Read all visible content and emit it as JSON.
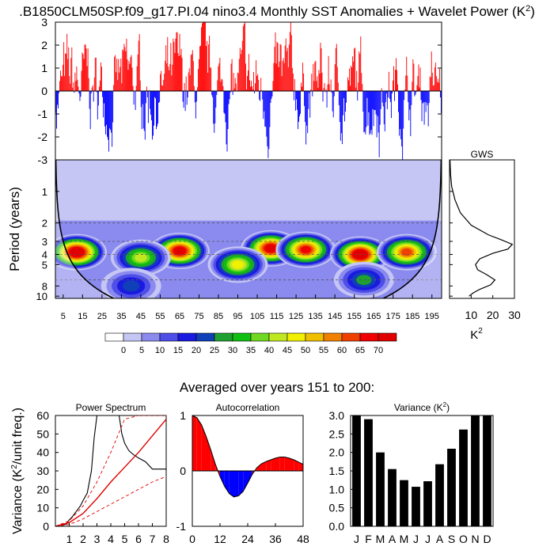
{
  "title": ".B1850CLM50SP.f09_g17.PI.04 nino3.4 Monthly SST Anomalies + Wavelet Power (K",
  "title_sup": "2",
  "title_close": ")",
  "subtitle": "Averaged over years 151 to 200:",
  "colors": {
    "positive": "#ff0000",
    "negative": "#0000ff",
    "cone": "#000000"
  },
  "chart_data": [
    {
      "id": "anomaly",
      "type": "bar",
      "ylim": [
        -3,
        3
      ],
      "yticks": [
        "-3",
        "-2",
        "-1",
        "0",
        "1",
        "2",
        "3"
      ],
      "note": "monthly nino3.4 anomalies, red above zero, blue below zero, years 1-200"
    },
    {
      "id": "wavelet",
      "type": "heatmap",
      "ylabel": "Period (years)",
      "ylog": true,
      "yticks": [
        "1",
        "2",
        "3",
        "4",
        "5",
        "8",
        "10"
      ],
      "xticks": [
        "5",
        "15",
        "25",
        "35",
        "45",
        "55",
        "65",
        "75",
        "85",
        "95",
        "105",
        "115",
        "125",
        "135",
        "145",
        "155",
        "165",
        "175",
        "185",
        "195"
      ],
      "xrange": [
        1,
        200
      ],
      "yrange": [
        0.5,
        10.5
      ],
      "dashed_periods": [
        2,
        3,
        4,
        7
      ],
      "hotspots": [
        {
          "year": 12,
          "period": 3.8,
          "power": 75
        },
        {
          "year": 65,
          "period": 3.7,
          "power": 72
        },
        {
          "year": 112,
          "period": 3.5,
          "power": 70
        },
        {
          "year": 130,
          "period": 3.6,
          "power": 65
        },
        {
          "year": 158,
          "period": 4.0,
          "power": 75
        },
        {
          "year": 182,
          "period": 3.8,
          "power": 60
        },
        {
          "year": 95,
          "period": 5.0,
          "power": 45
        },
        {
          "year": 45,
          "period": 4.3,
          "power": 40
        },
        {
          "year": 40,
          "period": 8,
          "power": 20
        },
        {
          "year": 160,
          "period": 7,
          "power": 25
        }
      ]
    },
    {
      "id": "gws",
      "type": "line",
      "title": "GWS",
      "xlabel": "K",
      "xlabel_sup": "2",
      "xlim": [
        0,
        30
      ],
      "xticks": [
        "10",
        "20",
        "30"
      ],
      "x": [
        0.2,
        0.5,
        1,
        2.5,
        5,
        10,
        18,
        24,
        29,
        27,
        20,
        14,
        12,
        13,
        17,
        21,
        19,
        14,
        11,
        9
      ],
      "y": [
        0.5,
        0.7,
        0.9,
        1.2,
        1.6,
        2.1,
        2.6,
        2.9,
        3.2,
        3.55,
        3.9,
        4.4,
        5.0,
        5.6,
        6.2,
        7.0,
        7.8,
        8.6,
        9.3,
        10.0
      ]
    },
    {
      "id": "colorbar",
      "type": "legend",
      "labels": [
        "0",
        "5",
        "10",
        "15",
        "20",
        "25",
        "30",
        "35",
        "40",
        "45",
        "50",
        "55",
        "60",
        "65",
        "70"
      ],
      "colors": [
        "#ffffff",
        "#c6c6f5",
        "#8a8aef",
        "#4e4ee8",
        "#1a1ae0",
        "#1040b8",
        "#20a030",
        "#10c010",
        "#70d820",
        "#c0e820",
        "#f0f000",
        "#f0c000",
        "#f08000",
        "#f04000",
        "#f00000",
        "#e00000"
      ]
    },
    {
      "id": "power-spectrum",
      "type": "line",
      "title": "Power Spectrum",
      "ylabel": "Variance (K",
      "ylabel_sup": "2",
      "ylabel_close": "/unit freq.)",
      "xlim": [
        0,
        8
      ],
      "ylim": [
        0,
        60
      ],
      "xticks": [
        "1",
        "2",
        "3",
        "4",
        "5",
        "6",
        "7",
        "8"
      ],
      "yticks": [
        "0",
        "10",
        "20",
        "30",
        "40",
        "50",
        "60"
      ],
      "series": [
        {
          "x": [
            0.5,
            0.8,
            1.0,
            1.2,
            1.5,
            1.8,
            2.0,
            2.3,
            2.6,
            2.8,
            3.0,
            4.6,
            4.8,
            5.0,
            5.3,
            5.6,
            6.0,
            6.5,
            7.0,
            7.5,
            8.0
          ],
          "y": [
            0.5,
            1.2,
            3.5,
            5,
            8,
            11,
            14,
            18,
            30,
            48,
            60,
            60,
            50,
            45,
            41,
            39,
            37,
            35,
            31,
            31,
            31
          ]
        },
        {
          "x": [
            0,
            1,
            2,
            3,
            4,
            5,
            6,
            7,
            8
          ],
          "y": [
            0,
            2,
            7,
            15,
            24,
            32,
            40,
            49,
            58
          ]
        },
        {
          "x": [
            0,
            1,
            2,
            3,
            4,
            5,
            6,
            7,
            8
          ],
          "y": [
            0,
            3,
            11,
            24,
            40,
            58,
            60,
            60,
            60
          ]
        },
        {
          "x": [
            0,
            1,
            2,
            3,
            4,
            5,
            6,
            7,
            8
          ],
          "y": [
            0,
            1,
            4,
            8,
            12,
            16,
            20,
            24,
            27
          ]
        }
      ]
    },
    {
      "id": "autocorrelation",
      "type": "area",
      "title": "Autocorrelation",
      "xlim": [
        0,
        48
      ],
      "ylim": [
        -1,
        1
      ],
      "xticks": [
        "0",
        "12",
        "24",
        "36",
        "48"
      ],
      "yticks": [
        "-1",
        "0",
        "1"
      ],
      "x": [
        0,
        2,
        4,
        6,
        8,
        10,
        12,
        14,
        16,
        18,
        20,
        22,
        24,
        26,
        28,
        30,
        32,
        34,
        36,
        38,
        40,
        42,
        44,
        46,
        48
      ],
      "y": [
        1.0,
        0.96,
        0.83,
        0.62,
        0.38,
        0.12,
        -0.1,
        -0.28,
        -0.41,
        -0.47,
        -0.45,
        -0.37,
        -0.22,
        -0.06,
        0.06,
        0.13,
        0.17,
        0.2,
        0.23,
        0.25,
        0.25,
        0.23,
        0.2,
        0.16,
        0.12
      ]
    },
    {
      "id": "variance",
      "type": "bar",
      "title": "Variance (K",
      "title_sup": "2",
      "title_close": ")",
      "ylim": [
        0,
        3
      ],
      "yticks": [
        "0.0",
        "0.5",
        "1.0",
        "1.5",
        "2.0",
        "2.5",
        "3.0"
      ],
      "categories": [
        "J",
        "F",
        "M",
        "A",
        "M",
        "J",
        "J",
        "A",
        "S",
        "O",
        "N",
        "D"
      ],
      "values": [
        3.0,
        2.9,
        2.0,
        1.55,
        1.25,
        1.07,
        1.22,
        1.68,
        2.1,
        2.62,
        3.0,
        3.0
      ]
    }
  ]
}
